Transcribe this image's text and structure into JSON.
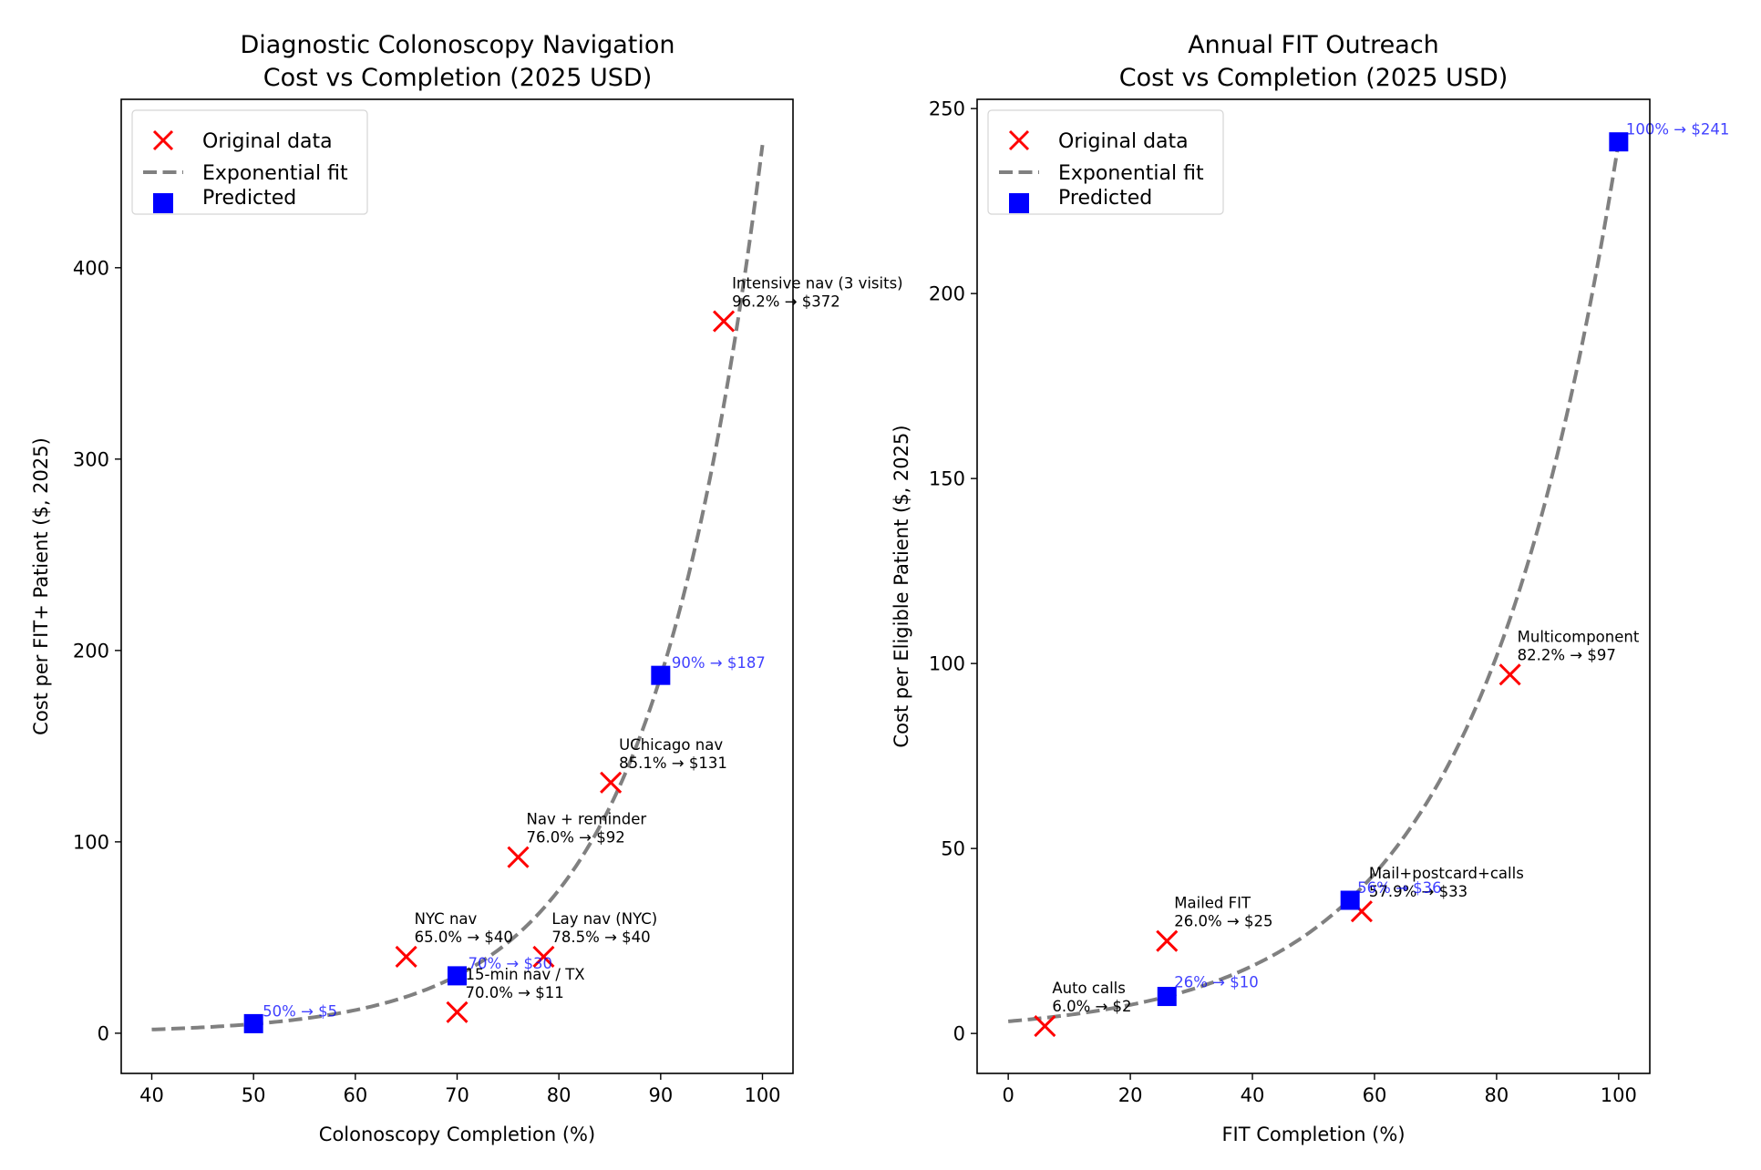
{
  "chart_data": [
    {
      "type": "scatter",
      "title": "Diagnostic Colonoscopy Navigation\nCost vs Completion (2025 USD)",
      "title_lines": [
        "Diagnostic Colonoscopy Navigation",
        "Cost vs Completion (2025 USD)"
      ],
      "xlabel": "Colonoscopy Completion (%)",
      "ylabel": "Cost per FIT+ Patient ($, 2025)",
      "xlim": [
        37,
        103
      ],
      "ylim": [
        -21,
        488
      ],
      "xticks": [
        40,
        50,
        60,
        70,
        80,
        90,
        100
      ],
      "yticks": [
        0,
        100,
        200,
        300,
        400
      ],
      "grid": false,
      "legend_position": "top-left",
      "legend": [
        "Original data",
        "Exponential fit",
        "Predicted"
      ],
      "colors": {
        "original": "#ff0000",
        "fit": "#808080",
        "predicted": "#0000ff"
      },
      "fit": {
        "model": "exponential",
        "a": 0.0508,
        "b": 0.0912,
        "x_range": [
          40,
          100
        ]
      },
      "original": [
        {
          "x": 65.0,
          "y": 40,
          "label": "NYC nav",
          "text": "65.0% → $40"
        },
        {
          "x": 70.0,
          "y": 11,
          "label": "15-min nav / TX",
          "text": "70.0% → $11"
        },
        {
          "x": 76.0,
          "y": 92,
          "label": "Nav + reminder",
          "text": "76.0% → $92"
        },
        {
          "x": 78.5,
          "y": 40,
          "label": "Lay nav (NYC)",
          "text": "78.5% → $40"
        },
        {
          "x": 85.1,
          "y": 131,
          "label": "UChicago nav",
          "text": "85.1% → $131"
        },
        {
          "x": 96.2,
          "y": 372,
          "label": "Intensive nav (3 visits)",
          "text": "96.2% → $372"
        }
      ],
      "predicted": [
        {
          "x": 50,
          "y": 5,
          "text": "50% → $5"
        },
        {
          "x": 70,
          "y": 30,
          "text": "70% → $30"
        },
        {
          "x": 90,
          "y": 187,
          "text": "90% → $187"
        }
      ]
    },
    {
      "type": "scatter",
      "title": "Annual FIT Outreach\nCost vs Completion (2025 USD)",
      "title_lines": [
        "Annual FIT Outreach",
        "Cost vs Completion (2025 USD)"
      ],
      "xlabel": "FIT Completion (%)",
      "ylabel": "Cost per Eligible Patient ($, 2025)",
      "xlim": [
        -5.1,
        105.1
      ],
      "ylim": [
        -10.8,
        252.5
      ],
      "xticks": [
        0,
        20,
        40,
        60,
        80,
        100
      ],
      "yticks": [
        0,
        50,
        100,
        150,
        200,
        250
      ],
      "grid": false,
      "legend_position": "top-left",
      "legend": [
        "Original data",
        "Exponential fit",
        "Predicted"
      ],
      "colors": {
        "original": "#ff0000",
        "fit": "#808080",
        "predicted": "#0000ff"
      },
      "fit": {
        "model": "exponential",
        "a": 3.27,
        "b": 0.043,
        "x_range": [
          0,
          100
        ]
      },
      "original": [
        {
          "x": 6.0,
          "y": 2,
          "label": "Auto calls",
          "text": "6.0% → $2"
        },
        {
          "x": 26.0,
          "y": 25,
          "label": "Mailed FIT",
          "text": "26.0% → $25"
        },
        {
          "x": 57.9,
          "y": 33,
          "label": "Mail+postcard+calls",
          "text": "57.9% → $33"
        },
        {
          "x": 82.2,
          "y": 97,
          "label": "Multicomponent",
          "text": "82.2% → $97"
        }
      ],
      "predicted": [
        {
          "x": 26,
          "y": 10,
          "text": "26% → $10"
        },
        {
          "x": 56,
          "y": 36,
          "text": "56% → $36"
        },
        {
          "x": 100,
          "y": 241,
          "text": "100% → $241"
        }
      ]
    }
  ]
}
